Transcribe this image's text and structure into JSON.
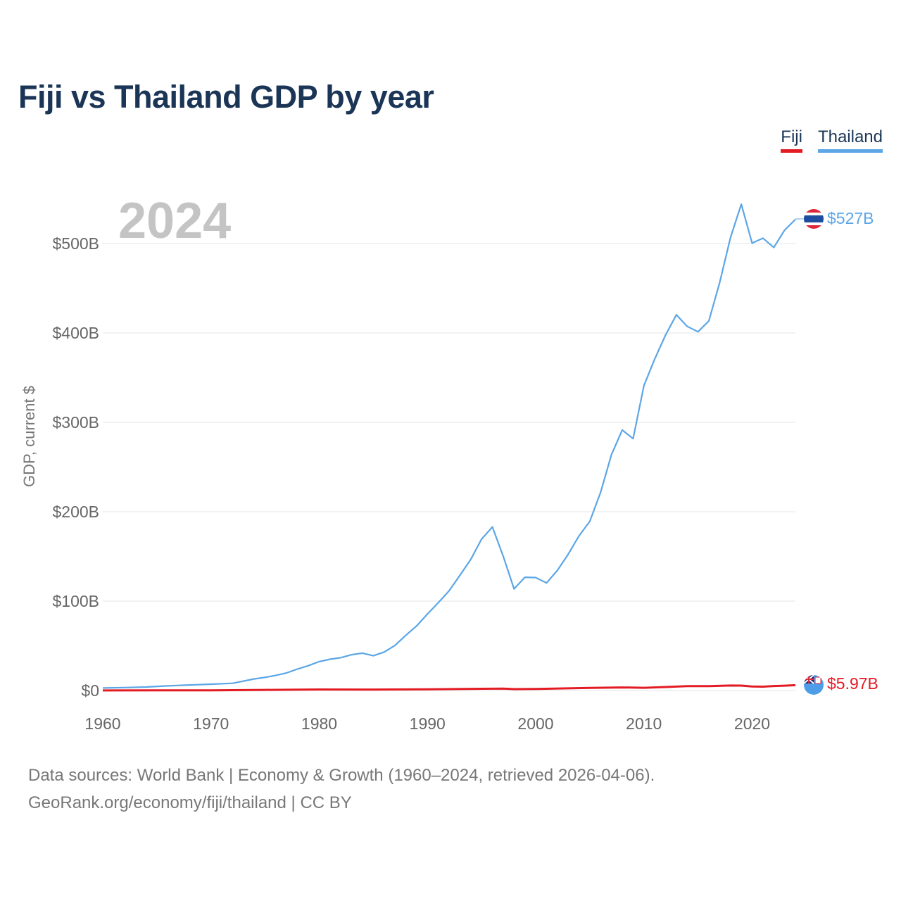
{
  "title": "Fiji vs Thailand GDP by year",
  "legend": [
    {
      "label": "Fiji",
      "color": "#e31b23"
    },
    {
      "label": "Thailand",
      "color": "#5ca6e6"
    }
  ],
  "year_display": "2024",
  "end_labels": {
    "thailand": "$527B",
    "fiji": "$5.97B"
  },
  "footer": {
    "line1": "Data sources: World Bank | Economy & Growth (1960–2024, retrieved 2026-04-06).",
    "line2": "GeoRank.org/economy/fiji/thailand | CC BY"
  },
  "flags": {
    "thailand": "thailand-flag-icon",
    "fiji": "fiji-flag-icon"
  },
  "chart_data": {
    "type": "line",
    "title": "Fiji vs Thailand GDP by year",
    "xlabel": "",
    "ylabel": "GDP, current $",
    "xlim": [
      1960,
      2024
    ],
    "ylim": [
      0,
      550
    ],
    "unit": "billions of current US$",
    "x_ticks": [
      1960,
      1970,
      1980,
      1990,
      2000,
      2010,
      2020
    ],
    "x_tick_labels": [
      "1960",
      "1970",
      "1980",
      "1990",
      "2000",
      "2010",
      "2020"
    ],
    "y_ticks": [
      0,
      100,
      200,
      300,
      400,
      500
    ],
    "y_tick_labels": [
      "$0",
      "$100B",
      "$200B",
      "$300B",
      "$400B",
      "$500B"
    ],
    "grid": true,
    "legend_position": "top-right",
    "series": [
      {
        "name": "Thailand",
        "color": "#5ca6e6",
        "x": [
          1960,
          1962,
          1964,
          1966,
          1968,
          1970,
          1972,
          1974,
          1975,
          1976,
          1977,
          1978,
          1979,
          1980,
          1981,
          1982,
          1983,
          1984,
          1985,
          1986,
          1987,
          1988,
          1989,
          1990,
          1991,
          1992,
          1993,
          1994,
          1995,
          1996,
          1997,
          1998,
          1999,
          2000,
          2001,
          2002,
          2003,
          2004,
          2005,
          2006,
          2007,
          2008,
          2009,
          2010,
          2011,
          2012,
          2013,
          2014,
          2015,
          2016,
          2017,
          2018,
          2019,
          2020,
          2021,
          2022,
          2023,
          2024
        ],
        "values": [
          2.8,
          3.3,
          3.9,
          5.2,
          6.2,
          7.1,
          8.1,
          13.0,
          14.7,
          17.0,
          19.8,
          24.1,
          27.8,
          32.4,
          35.0,
          36.8,
          40.1,
          41.8,
          38.9,
          43.1,
          50.5,
          61.7,
          72.3,
          85.6,
          98.2,
          111.5,
          128.9,
          146.7,
          169.3,
          183.0,
          150.2,
          113.7,
          126.7,
          126.4,
          120.3,
          134.3,
          152.3,
          172.9,
          189.3,
          221.8,
          263.7,
          291.4,
          281.7,
          341.1,
          370.8,
          397.6,
          420.3,
          407.3,
          401.3,
          413.4,
          456.4,
          506.8,
          544.0,
          500.5,
          506.0,
          495.6,
          515.0,
          527.0
        ]
      },
      {
        "name": "Fiji",
        "color": "#e31b23",
        "x": [
          1960,
          1965,
          1970,
          1975,
          1980,
          1985,
          1990,
          1995,
          1997,
          1998,
          2000,
          2005,
          2008,
          2010,
          2012,
          2014,
          2016,
          2018,
          2019,
          2020,
          2021,
          2022,
          2023,
          2024
        ],
        "values": [
          0.1,
          0.14,
          0.22,
          0.68,
          1.2,
          1.1,
          1.4,
          2.0,
          2.1,
          1.6,
          1.7,
          3.0,
          3.5,
          3.1,
          3.9,
          4.9,
          4.9,
          5.6,
          5.5,
          4.5,
          4.3,
          5.0,
          5.4,
          5.97
        ]
      }
    ]
  }
}
